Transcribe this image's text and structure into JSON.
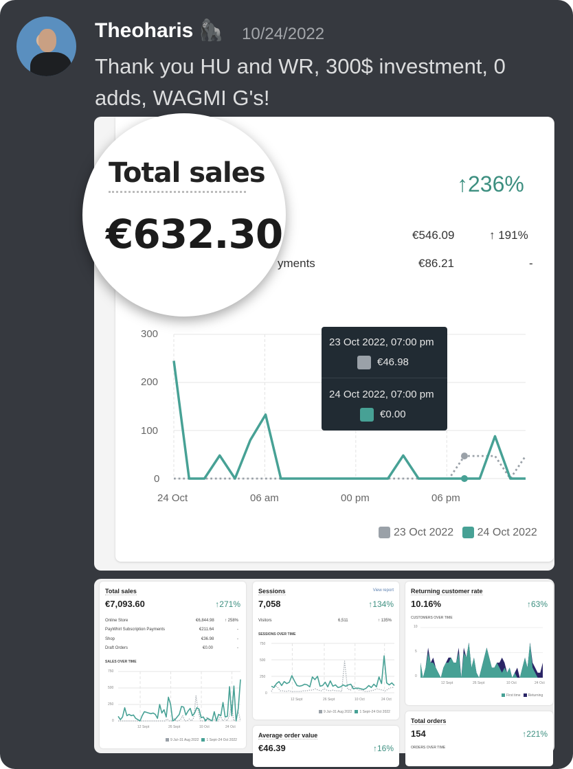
{
  "message": {
    "username": "Theoharis",
    "badge_emoji": "🦍",
    "timestamp": "10/24/2022",
    "text": "Thank you HU and WR, 300$ investment, 0 adds,  WAGMI G's!"
  },
  "colors": {
    "accent": "#47a195",
    "comparison": "#9aa1a8",
    "returning": "#2a2566",
    "background": "#36393f",
    "tooltip": "#212b33"
  },
  "total_sales_card": {
    "title": "Total sales",
    "value": "€632.30",
    "change": "↑236%",
    "rows": [
      {
        "label": "",
        "value": "€546.09",
        "change": "↑ 191%"
      },
      {
        "label": "yments",
        "value": "€86.21",
        "change": "-"
      }
    ],
    "tooltip": {
      "entries": [
        {
          "date": "23 Oct 2022, 07:00 pm",
          "value": "€46.98",
          "color": "#9aa1a8"
        },
        {
          "date": "24 Oct 2022, 07:00 pm",
          "value": "€0.00",
          "color": "#47a195"
        }
      ]
    }
  },
  "chart_data": [
    {
      "type": "line",
      "ylim": [
        0,
        300
      ],
      "y_ticks": [
        "300",
        "200",
        "100",
        "0"
      ],
      "x_ticks": [
        "24 Oct",
        "06 am",
        "00 pm",
        "06 pm"
      ],
      "x_hours": [
        0,
        1,
        2,
        3,
        4,
        5,
        6,
        7,
        8,
        9,
        10,
        11,
        12,
        13,
        14,
        15,
        16,
        17,
        18,
        19,
        20,
        21,
        22,
        23
      ],
      "grid": true,
      "legend": "bottom-right",
      "series": [
        {
          "name": "23 Oct 2022",
          "style": "dotted",
          "color": "#9aa1a8",
          "values": [
            0,
            0,
            0,
            0,
            0,
            0,
            0,
            0,
            0,
            0,
            0,
            0,
            0,
            0,
            0,
            0,
            0,
            0,
            0,
            47,
            47,
            47,
            0,
            47
          ]
        },
        {
          "name": "24 Oct 2022",
          "style": "solid",
          "color": "#47a195",
          "values": [
            245,
            0,
            0,
            48,
            0,
            80,
            133,
            0,
            0,
            0,
            0,
            0,
            0,
            0,
            0,
            48,
            0,
            0,
            0,
            0,
            0,
            88,
            0,
            0
          ]
        }
      ]
    },
    {
      "type": "line",
      "title": "SALES OVER TIME",
      "ylim": [
        0,
        750
      ],
      "y_ticks": [
        "750",
        "500",
        "250",
        "0"
      ],
      "x_ticks": [
        "12 Sept",
        "26 Sept",
        "10 Oct",
        "24 Oct"
      ],
      "legend": "bottom-right",
      "series": [
        {
          "name": "9 Jul–31 Aug 2022",
          "style": "dotted",
          "color": "#9aa1a8",
          "values": [
            0,
            0,
            0,
            0,
            0,
            0,
            0,
            0,
            0,
            0,
            0,
            0,
            0,
            0,
            0,
            0,
            0,
            0,
            0,
            0,
            0,
            0,
            30,
            0,
            0,
            40,
            0,
            0,
            20,
            80,
            0,
            0,
            30,
            0,
            50,
            380,
            150,
            0,
            0,
            0,
            60,
            0,
            0,
            20,
            0,
            0,
            80,
            0,
            30,
            0,
            80,
            250,
            0,
            30,
            150,
            0
          ]
        },
        {
          "name": "1 Sept–24 Oct 2022",
          "style": "solid",
          "color": "#47a195",
          "values": [
            70,
            20,
            60,
            200,
            80,
            100,
            80,
            90,
            40,
            20,
            0,
            80,
            140,
            130,
            120,
            110,
            120,
            100,
            40,
            250,
            120,
            170,
            60,
            360,
            250,
            0,
            20,
            60,
            100,
            220,
            210,
            90,
            150,
            190,
            80,
            120,
            200,
            180,
            50,
            60,
            0,
            40,
            20,
            0,
            140,
            0,
            100,
            80,
            280,
            60,
            70,
            520,
            80,
            530,
            0,
            190,
            630
          ]
        }
      ]
    },
    {
      "type": "line",
      "title": "SESSIONS OVER TIME",
      "ylim": [
        0,
        750
      ],
      "y_ticks": [
        "750",
        "500",
        "250",
        "0"
      ],
      "x_ticks": [
        "12 Sept",
        "26 Sept",
        "10 Oct",
        "24 Oct"
      ],
      "legend": "bottom-right",
      "series": [
        {
          "name": "9 Jul–31 Aug 2022",
          "style": "dotted",
          "color": "#9aa1a8",
          "values": [
            20,
            110,
            90,
            30,
            30,
            20,
            30,
            20,
            20,
            20,
            20,
            30,
            30,
            40,
            40,
            60,
            40,
            30,
            60,
            40,
            30,
            40,
            30,
            30,
            20,
            480,
            60,
            40,
            110,
            60,
            40,
            40,
            20,
            20,
            30,
            40,
            60,
            50,
            40,
            30,
            60,
            80,
            80
          ]
        },
        {
          "name": "1 Sept–24 Oct 2022",
          "style": "solid",
          "color": "#47a195",
          "values": [
            100,
            80,
            140,
            170,
            110,
            170,
            140,
            160,
            260,
            180,
            110,
            100,
            110,
            130,
            120,
            90,
            240,
            200,
            250,
            100,
            110,
            160,
            90,
            180,
            100,
            120,
            80,
            90,
            120,
            100,
            120,
            130,
            60,
            70,
            70,
            60,
            50,
            70,
            110,
            80,
            130,
            90,
            240,
            140,
            560,
            150,
            120,
            150,
            110
          ]
        }
      ]
    },
    {
      "type": "area",
      "title": "CUSTOMERS OVER TIME",
      "ylim": [
        0,
        10
      ],
      "y_ticks": [
        "10",
        "5",
        "0"
      ],
      "x_ticks": [
        "12 Sept",
        "26 Sept",
        "10 Oct",
        "24 Oct"
      ],
      "legend": "bottom-right",
      "series": [
        {
          "name": "First time",
          "color": "#47a195",
          "values": [
            3,
            0,
            2,
            5,
            3,
            3,
            2,
            1,
            0,
            2,
            3,
            3,
            4,
            3,
            3,
            5,
            0,
            5,
            4,
            7,
            2,
            4,
            1,
            0,
            2,
            4,
            6,
            4,
            2,
            2,
            3,
            2,
            1,
            2,
            1,
            2,
            0,
            1,
            0,
            0,
            2,
            4,
            2,
            7,
            2,
            1,
            0,
            0,
            0
          ]
        },
        {
          "name": "Returning",
          "color": "#2a2566",
          "values": [
            0,
            0,
            0,
            1,
            0,
            1,
            0,
            0,
            0,
            0,
            0,
            1,
            0,
            0,
            0,
            1,
            0,
            1,
            0,
            0,
            0,
            0,
            0,
            0,
            0,
            0,
            0,
            0,
            0,
            0,
            0,
            1,
            3,
            1,
            0,
            0,
            0,
            0,
            2,
            0,
            0,
            0,
            0,
            0,
            1,
            1,
            1,
            1,
            3
          ]
        }
      ]
    }
  ],
  "small_cards": {
    "sales": {
      "title": "Total sales",
      "value": "€7,093.60",
      "change": "↑271%",
      "rows": [
        {
          "label": "Online Store",
          "value": "€6,844.98",
          "change": "↑ 258%"
        },
        {
          "label": "PayWhirl Subscription Payments",
          "value": "€211.64",
          "change": "-"
        },
        {
          "label": "Shop",
          "value": "€36.98",
          "change": "-"
        },
        {
          "label": "Draft Orders",
          "value": "€0.00",
          "change": "-"
        }
      ]
    },
    "sessions": {
      "title": "Sessions",
      "link": "View report",
      "value": "7,058",
      "change": "↑134%",
      "rows": [
        {
          "label": "Visitors",
          "value": "6,511",
          "change": "↑ 135%"
        }
      ]
    },
    "returning": {
      "title": "Returning customer rate",
      "value": "10.16%",
      "change": "↑63%"
    },
    "aov": {
      "title": "Average order value",
      "value": "€46.39",
      "change": "↑16%"
    },
    "orders": {
      "title": "Total orders",
      "value": "154",
      "change": "↑221%",
      "chart_title": "ORDERS OVER TIME"
    }
  }
}
